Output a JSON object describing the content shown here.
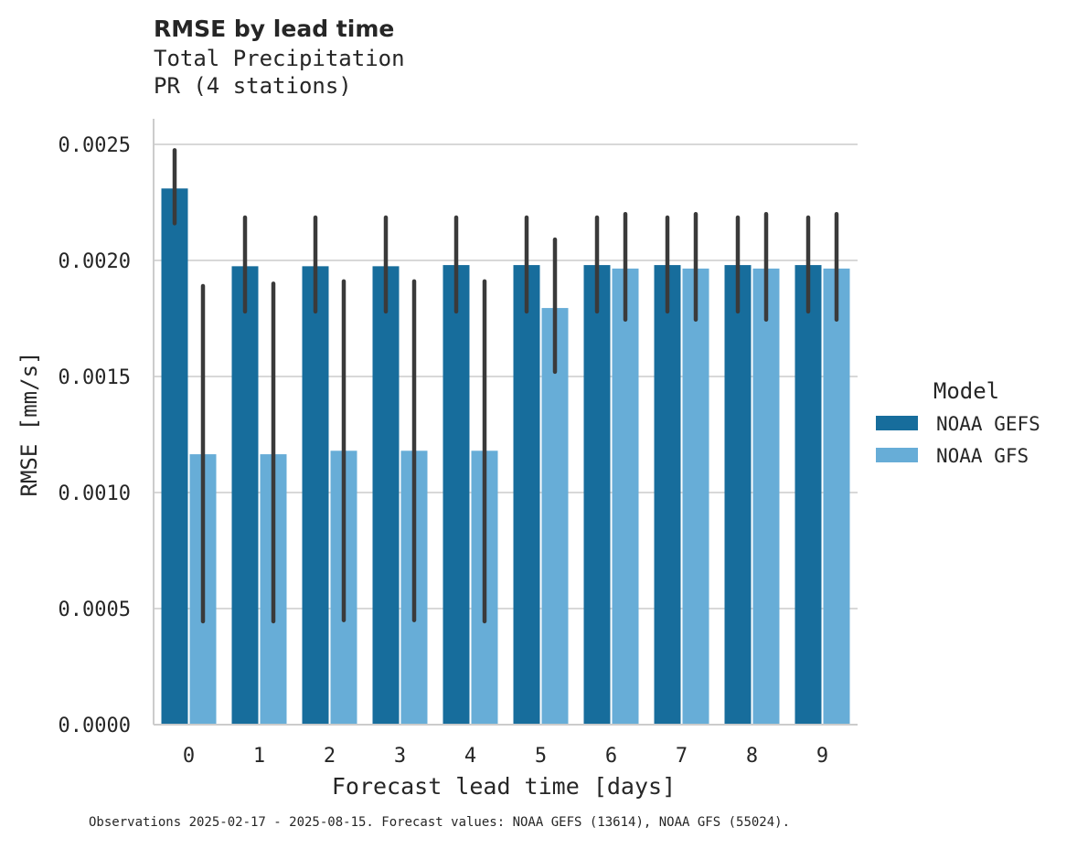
{
  "title": "RMSE by lead time",
  "subtitle_lines": [
    "Total Precipitation",
    "PR (4 stations)"
  ],
  "footnote": "Observations 2025-02-17 - 2025-08-15. Forecast values: NOAA GEFS (13614), NOAA GFS (55024).",
  "colors": {
    "gefs": "#176d9c",
    "gfs": "#67add7",
    "errorbar": "#3a3a3a",
    "grid": "#cccccc",
    "spine": "#cccccc"
  },
  "chart_data": {
    "type": "bar",
    "xlabel": "Forecast lead time [days]",
    "ylabel": "RMSE [mm/s]",
    "ylim": [
      0,
      0.0026
    ],
    "yticks": [
      0,
      0.0005,
      0.001,
      0.0015,
      0.002,
      0.0025
    ],
    "ytick_labels": [
      "0.0000",
      "0.0005",
      "0.0010",
      "0.0015",
      "0.0020",
      "0.0025"
    ],
    "categories": [
      "0",
      "1",
      "2",
      "3",
      "4",
      "5",
      "6",
      "7",
      "8",
      "9"
    ],
    "grid": true,
    "legend": {
      "title": "Model",
      "placement": "center-right"
    },
    "series": [
      {
        "name": "NOAA GEFS",
        "values": [
          0.00231,
          0.001975,
          0.001975,
          0.001975,
          0.00198,
          0.00198,
          0.00198,
          0.00198,
          0.00198,
          0.00198
        ],
        "ci_low": [
          0.00216,
          0.00178,
          0.00178,
          0.00178,
          0.00178,
          0.00178,
          0.00178,
          0.00178,
          0.00178,
          0.00178
        ],
        "ci_high": [
          0.002475,
          0.002185,
          0.002185,
          0.002185,
          0.002185,
          0.002185,
          0.002185,
          0.002185,
          0.002185,
          0.002185
        ]
      },
      {
        "name": "NOAA GFS",
        "values": [
          0.001165,
          0.001165,
          0.00118,
          0.00118,
          0.00118,
          0.001795,
          0.001965,
          0.001965,
          0.001965,
          0.001965
        ],
        "ci_low": [
          0.000445,
          0.000445,
          0.00045,
          0.00045,
          0.000445,
          0.00152,
          0.001745,
          0.001745,
          0.001745,
          0.001745
        ],
        "ci_high": [
          0.00189,
          0.0019,
          0.00191,
          0.00191,
          0.00191,
          0.00209,
          0.0022,
          0.0022,
          0.0022,
          0.0022
        ]
      }
    ]
  }
}
